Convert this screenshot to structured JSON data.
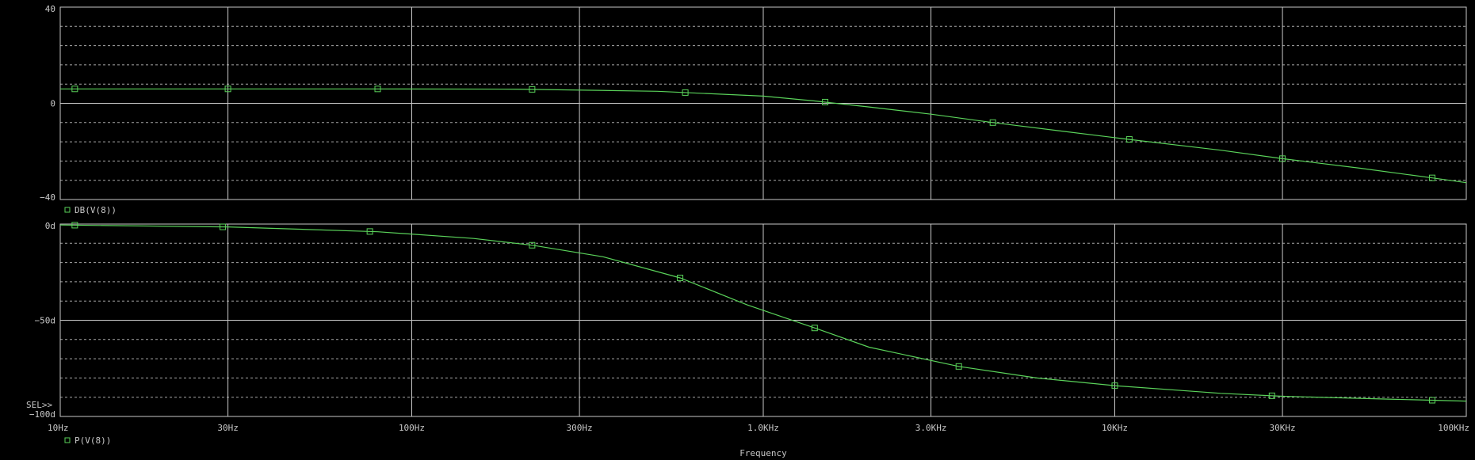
{
  "chart_data": [
    {
      "type": "line",
      "xscale": "log",
      "xlim": [
        10,
        100000
      ],
      "ylim": [
        -40,
        40
      ],
      "yticks": [
        40,
        0,
        -40
      ],
      "yticklabels": [
        "40",
        "0",
        "−40"
      ],
      "grid": true,
      "series": [
        {
          "name": "DB(V(8))",
          "color": "#5ad25a",
          "x": [
            10,
            30,
            70,
            200,
            500,
            1000,
            1400,
            2000,
            3000,
            4500,
            7000,
            11000,
            20000,
            30000,
            50000,
            80000,
            100000
          ],
          "y": [
            6.0,
            6.0,
            6.0,
            5.9,
            5.0,
            3.0,
            1.0,
            -1.5,
            -4.5,
            -8.0,
            -11.5,
            -15.0,
            -19.5,
            -23.0,
            -27.0,
            -31.0,
            -33.0
          ],
          "markers_x": [
            11,
            30,
            80,
            220,
            600,
            1500,
            4500,
            11000,
            30000,
            80000
          ]
        }
      ]
    },
    {
      "type": "line",
      "xscale": "log",
      "xlim": [
        10,
        100000
      ],
      "ylim": [
        -100,
        0
      ],
      "yticks": [
        0,
        -50,
        -100
      ],
      "yticklabels": [
        "0d",
        "−50d",
        "−100d"
      ],
      "xticks": [
        10,
        30,
        100,
        300,
        1000,
        3000,
        10000,
        30000,
        100000
      ],
      "xticklabels": [
        "10Hz",
        "30Hz",
        "100Hz",
        "300Hz",
        "1.0KHz",
        "3.0KHz",
        "10KHz",
        "30KHz",
        "100KHz"
      ],
      "xlabel": "Frequency",
      "grid": true,
      "annotation": "SEL>>",
      "series": [
        {
          "name": "P(V(8))",
          "color": "#5ad25a",
          "x": [
            10,
            30,
            80,
            150,
            220,
            350,
            580,
            900,
            1400,
            2000,
            3600,
            6000,
            10000,
            20000,
            30000,
            60000,
            100000
          ],
          "y": [
            -0.5,
            -1.5,
            -4.0,
            -7.5,
            -11.0,
            -17.0,
            -28.0,
            -42.0,
            -54.0,
            -64.0,
            -74.0,
            -80.0,
            -84.0,
            -88.0,
            -89.5,
            -91.0,
            -92.0
          ],
          "markers_x": [
            11,
            29,
            76,
            220,
            580,
            1400,
            3600,
            10000,
            28000,
            80000
          ]
        }
      ]
    }
  ]
}
